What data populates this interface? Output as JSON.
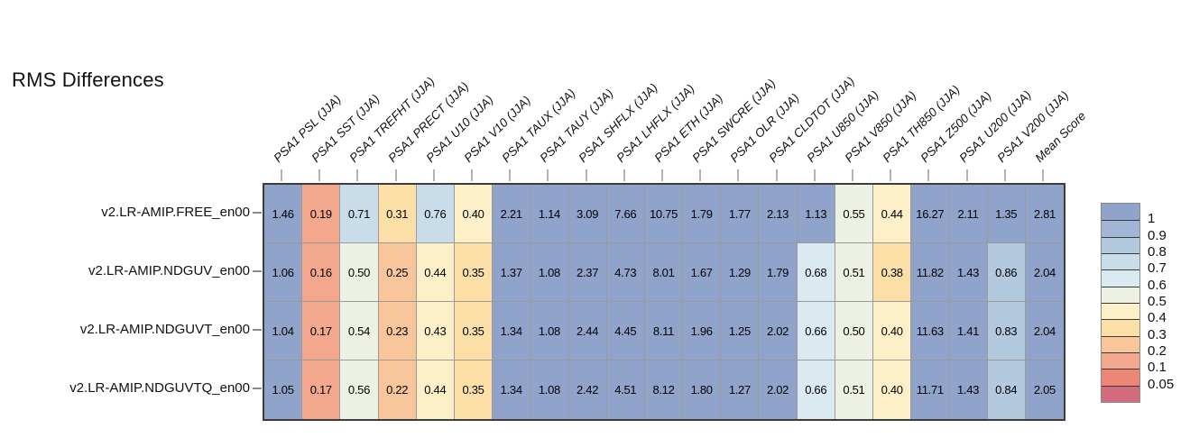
{
  "title": "RMS Differences",
  "chart_data": {
    "type": "heatmap",
    "title": "RMS Differences",
    "season": "JJA",
    "columns": [
      "PSA1 PSL (JJA)",
      "PSA1 SST (JJA)",
      "PSA1 TREFHT (JJA)",
      "PSA1 PRECT (JJA)",
      "PSA1 U10 (JJA)",
      "PSA1 V10 (JJA)",
      "PSA1 TAUX (JJA)",
      "PSA1 TAUY (JJA)",
      "PSA1 SHFLX (JJA)",
      "PSA1 LHFLX (JJA)",
      "PSA1 ETH (JJA)",
      "PSA1 SWCRE (JJA)",
      "PSA1 OLR (JJA)",
      "PSA1 CLDTOT (JJA)",
      "PSA1 U850 (JJA)",
      "PSA1 V850 (JJA)",
      "PSA1 TH850 (JJA)",
      "PSA1 Z500 (JJA)",
      "PSA1 U200 (JJA)",
      "PSA1 V200 (JJA)",
      "Mean Score"
    ],
    "rows": [
      "v2.LR-AMIP.FREE_en00",
      "v2.LR-AMIP.NDGUV_en00",
      "v2.LR-AMIP.NDGUVT_en00",
      "v2.LR-AMIP.NDGUVTQ_en00"
    ],
    "values": [
      [
        "1.46",
        "0.19",
        "0.71",
        "0.31",
        "0.76",
        "0.40",
        "2.21",
        "1.14",
        "3.09",
        "7.66",
        "10.75",
        "1.79",
        "1.77",
        "2.13",
        "1.13",
        "0.55",
        "0.44",
        "16.27",
        "2.11",
        "1.35",
        "2.81"
      ],
      [
        "1.06",
        "0.16",
        "0.50",
        "0.25",
        "0.44",
        "0.35",
        "1.37",
        "1.08",
        "2.37",
        "4.73",
        "8.01",
        "1.67",
        "1.29",
        "1.79",
        "0.68",
        "0.51",
        "0.38",
        "11.82",
        "1.43",
        "0.86",
        "2.04"
      ],
      [
        "1.04",
        "0.17",
        "0.54",
        "0.23",
        "0.43",
        "0.35",
        "1.34",
        "1.08",
        "2.44",
        "4.45",
        "8.11",
        "1.96",
        "1.25",
        "2.02",
        "0.66",
        "0.50",
        "0.40",
        "11.63",
        "1.41",
        "0.83",
        "2.04"
      ],
      [
        "1.05",
        "0.17",
        "0.56",
        "0.22",
        "0.44",
        "0.35",
        "1.34",
        "1.08",
        "2.42",
        "4.51",
        "8.12",
        "1.80",
        "1.27",
        "2.02",
        "0.66",
        "0.51",
        "0.40",
        "11.71",
        "1.43",
        "0.84",
        "2.05"
      ]
    ],
    "legend": {
      "ticks": [
        "1",
        "0.9",
        "0.8",
        "0.7",
        "0.6",
        "0.5",
        "0.4",
        "0.3",
        "0.2",
        "0.1",
        "0.05"
      ],
      "thresholds": [
        1,
        0.9,
        0.8,
        0.7,
        0.6,
        0.5,
        0.4,
        0.3,
        0.2,
        0.1,
        0.05
      ],
      "band_colors_top_to_bottom": [
        "#8fa3cb",
        "#a1b6d6",
        "#b3cade",
        "#c8dce9",
        "#dbeaf1",
        "#edf1e4",
        "#fdf0c8",
        "#fcdfa6",
        "#f9c69c",
        "#f3a78d",
        "#ec8677",
        "#d36a7e"
      ],
      "position": "right"
    },
    "grid_lines": true
  }
}
